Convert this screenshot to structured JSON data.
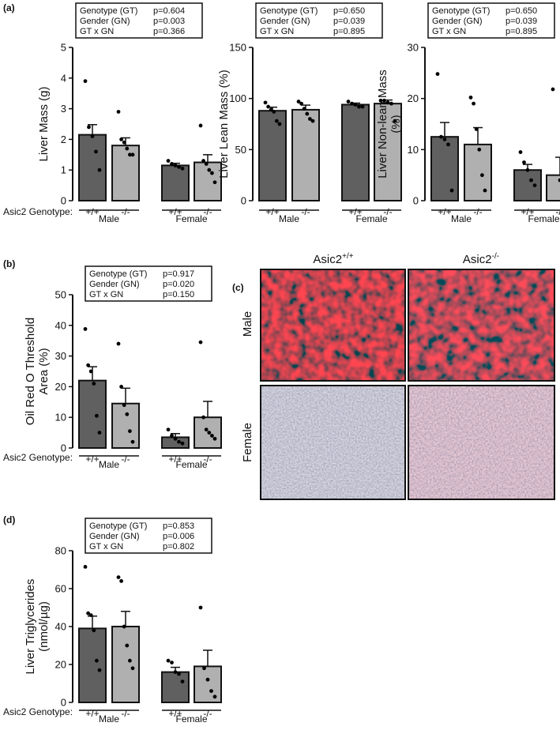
{
  "panel_labels": {
    "a": "(a)",
    "b": "(b)",
    "c": "(c)",
    "d": "(d)"
  },
  "genotype_row_label": "Asic2 Genotype:",
  "genotypes": [
    "+/+",
    "-/-"
  ],
  "sexes": [
    "Male",
    "Female"
  ],
  "colors": {
    "wt": "#606060",
    "ko": "#b0b0b0",
    "axis": "#111111",
    "dot": "#000000"
  },
  "micrographs": {
    "col_labels": [
      {
        "base": "Asic2",
        "sup": "+/+"
      },
      {
        "base": "Asic2",
        "sup": "-/-"
      }
    ],
    "row_labels": [
      "Male",
      "Female"
    ]
  },
  "chart_data": [
    {
      "id": "liver-mass",
      "panel": "(a)",
      "type": "bar",
      "ylabel": [
        "Liver Mass (g)"
      ],
      "ylim": [
        0,
        5
      ],
      "yticks": [
        0,
        1,
        2,
        3,
        4,
        5
      ],
      "categories": [
        "Male +/+",
        "Male -/-",
        "Female +/+",
        "Female -/-"
      ],
      "values": [
        2.15,
        1.8,
        1.15,
        1.25
      ],
      "errors": [
        0.33,
        0.25,
        0.07,
        0.25
      ],
      "points": [
        [
          3.9,
          2.4,
          2.1,
          1.6,
          1.0
        ],
        [
          2.9,
          2.0,
          1.9,
          1.7,
          1.5,
          1.5
        ],
        [
          1.3,
          1.2,
          1.15,
          1.1,
          1.05
        ],
        [
          2.45,
          1.3,
          1.2,
          1.0,
          0.9,
          0.6
        ]
      ],
      "stats": [
        {
          "label": "Genotype (GT)",
          "p": "p=0.604"
        },
        {
          "label": "Gender (GN)",
          "p": "p=0.003"
        },
        {
          "label": "GT x GN",
          "p": "p=0.366"
        }
      ]
    },
    {
      "id": "liver-lean-mass",
      "panel": "",
      "type": "bar",
      "ylabel": [
        "Liver Lean Mass (%)"
      ],
      "ylim": [
        0,
        150
      ],
      "yticks": [
        0,
        50,
        100,
        150
      ],
      "categories": [
        "Male +/+",
        "Male -/-",
        "Female +/+",
        "Female -/-"
      ],
      "values": [
        88,
        89,
        94,
        95
      ],
      "errors": [
        3.5,
        4.5,
        1.5,
        3.5
      ],
      "points": [
        [
          96,
          92,
          89,
          87,
          78,
          75
        ],
        [
          97,
          95,
          90,
          85,
          80,
          78
        ],
        [
          97,
          95,
          94,
          92,
          92
        ],
        [
          98,
          98,
          96,
          95,
          78
        ]
      ],
      "stats": [
        {
          "label": "Genotype (GT)",
          "p": "p=0.650"
        },
        {
          "label": "Gender (GN)",
          "p": "p=0.039"
        },
        {
          "label": "GT x GN",
          "p": "p=0.895"
        }
      ]
    },
    {
      "id": "liver-non-lean-mass",
      "panel": "",
      "type": "bar",
      "ylabel": [
        "Liver Non-lean Mass",
        "(%)"
      ],
      "ylim": [
        0,
        30
      ],
      "yticks": [
        0,
        10,
        20,
        30
      ],
      "categories": [
        "Male +/+",
        "Male -/-",
        "Female +/+",
        "Female -/-"
      ],
      "values": [
        12.5,
        11,
        6,
        5
      ],
      "errors": [
        2.8,
        3.3,
        1.1,
        3.5
      ],
      "points": [
        [
          24.8,
          12.5,
          12,
          11,
          2
        ],
        [
          20.2,
          19,
          14,
          10,
          5,
          2
        ],
        [
          9.5,
          7.5,
          6,
          4,
          3
        ],
        [
          21.8,
          4,
          1.5
        ]
      ],
      "stats": [
        {
          "label": "Genotype (GT)",
          "p": "p=0.650"
        },
        {
          "label": "Gender (GN)",
          "p": "p=0.039"
        },
        {
          "label": "GT x GN",
          "p": "p=0.895"
        }
      ]
    },
    {
      "id": "oil-red-o",
      "panel": "(b)",
      "type": "bar",
      "ylabel": [
        "Oil Red O Threshold",
        "Area (%)"
      ],
      "ylim": [
        0,
        50
      ],
      "yticks": [
        0,
        10,
        20,
        30,
        40,
        50
      ],
      "categories": [
        "Male +/+",
        "Male -/-",
        "Female +/+",
        "Female -/-"
      ],
      "values": [
        22,
        14.5,
        3.5,
        10
      ],
      "errors": [
        4.5,
        5,
        1.2,
        5.2
      ],
      "points": [
        [
          38.8,
          27,
          25,
          21,
          10.5,
          5
        ],
        [
          34,
          20,
          14,
          11,
          5.5,
          2
        ],
        [
          6,
          4,
          3,
          2,
          1.5
        ],
        [
          34.5,
          10,
          6,
          5,
          4,
          3
        ]
      ],
      "stats": [
        {
          "label": "Genotype (GT)",
          "p": "p=0.917"
        },
        {
          "label": "Gender (GN)",
          "p": "p=0.020"
        },
        {
          "label": "GT x GN",
          "p": "p=0.150"
        }
      ]
    },
    {
      "id": "liver-triglycerides",
      "panel": "(d)",
      "type": "bar",
      "ylabel": [
        "Liver Triglycerides",
        "(nmol/µg)"
      ],
      "ylim": [
        0,
        80
      ],
      "yticks": [
        0,
        20,
        40,
        60,
        80
      ],
      "categories": [
        "Male +/+",
        "Male -/-",
        "Female +/+",
        "Female -/-"
      ],
      "values": [
        39,
        40,
        16,
        19
      ],
      "errors": [
        6.5,
        8,
        2.5,
        8.5
      ],
      "points": [
        [
          71.5,
          47,
          46,
          38,
          22,
          17
        ],
        [
          66,
          64,
          40,
          30,
          22,
          18
        ],
        [
          22,
          21,
          16,
          15,
          11
        ],
        [
          50,
          18,
          12,
          6,
          3
        ]
      ],
      "stats": [
        {
          "label": "Genotype (GT)",
          "p": "p=0.853"
        },
        {
          "label": "Gender (GN)",
          "p": "p=0.006"
        },
        {
          "label": "GT x GN",
          "p": "p=0.802"
        }
      ]
    }
  ]
}
